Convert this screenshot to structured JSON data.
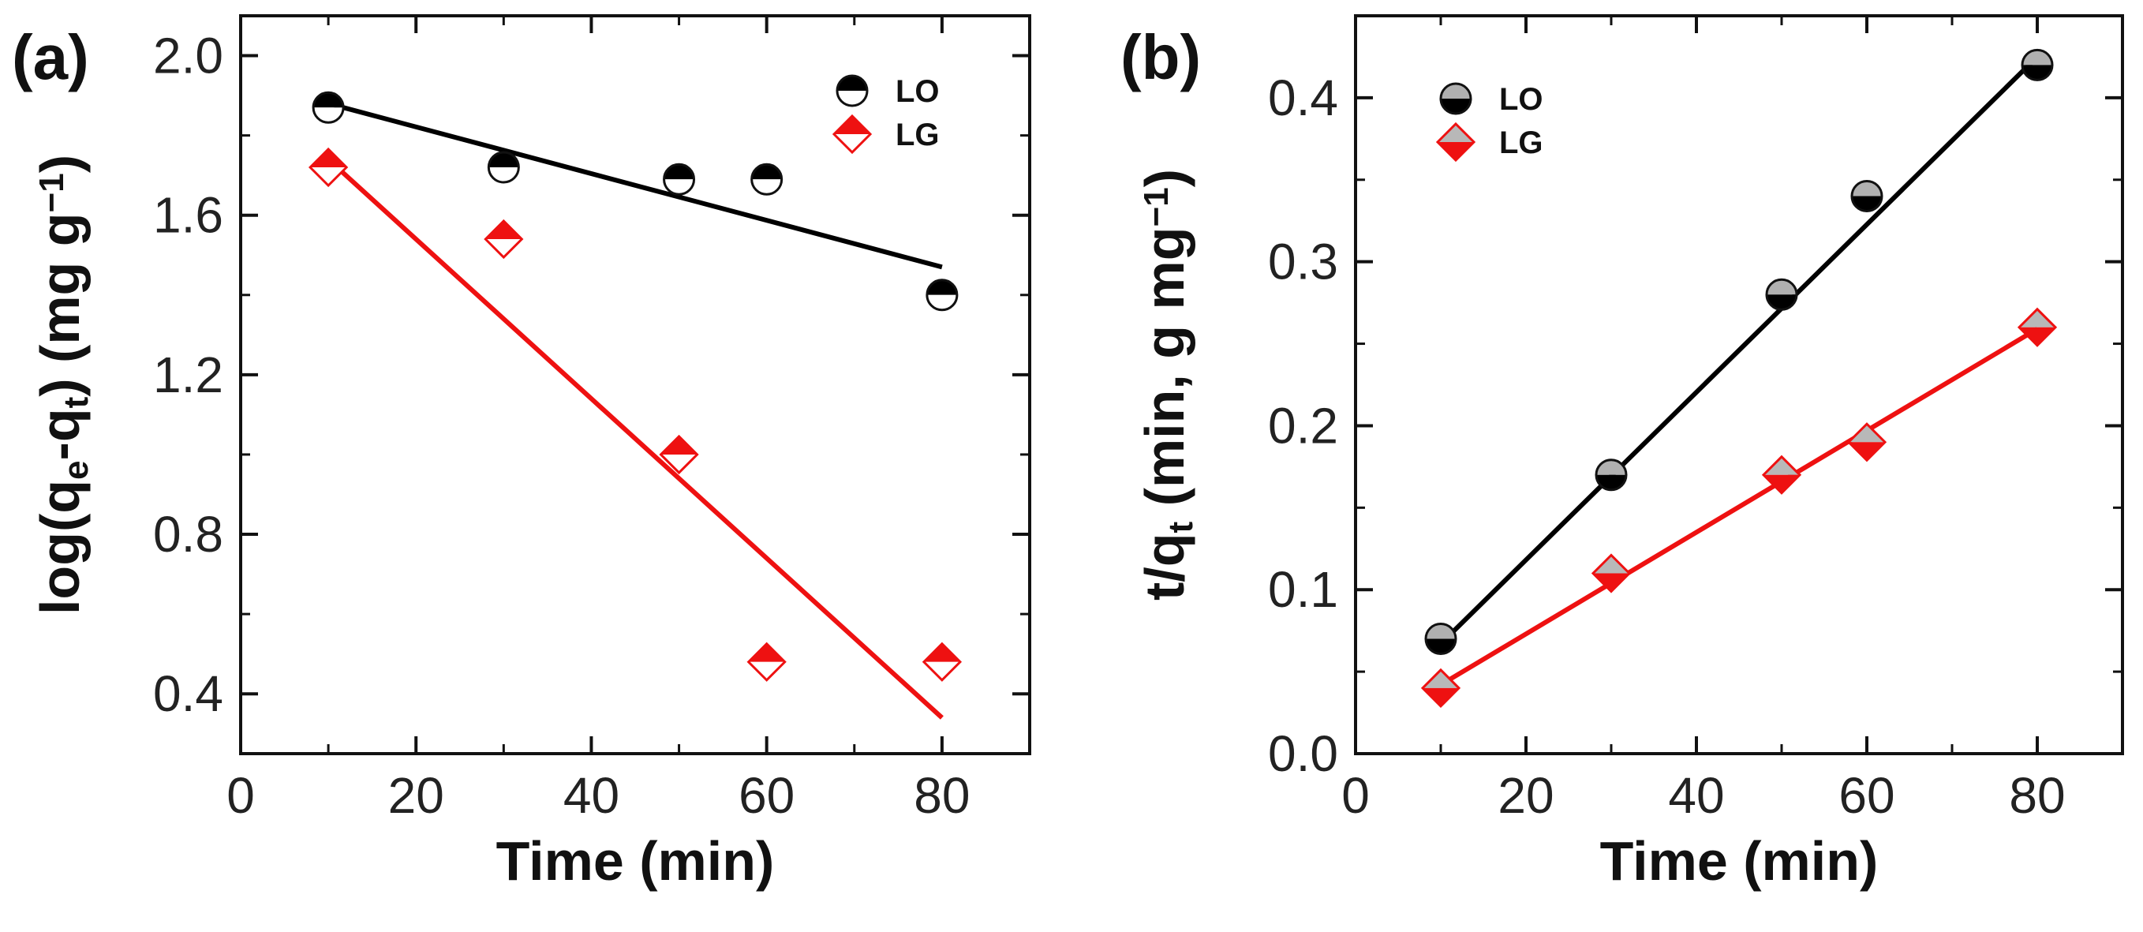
{
  "chart_data": [
    {
      "panel_label": "(a)",
      "type": "scatter",
      "xlabel": "Time (min)",
      "ylabel": {
        "main": "log(q",
        "sub1": "e",
        "mid": "-q",
        "sub2": "t",
        "tail": ") (mg g",
        "sup": "−1",
        "end": ")"
      },
      "xlim": [
        0,
        90
      ],
      "ylim": [
        0.25,
        2.1
      ],
      "xticks": [
        0,
        20,
        40,
        60,
        80
      ],
      "yticks": [
        0.4,
        0.8,
        1.2,
        1.6,
        2.0
      ],
      "xtick_labels": [
        "0",
        "20",
        "40",
        "60",
        "80"
      ],
      "ytick_labels": [
        "0.4",
        "0.8",
        "1.2",
        "1.6",
        "2.0"
      ],
      "legend_position": "top-right",
      "series": [
        {
          "name": "LO",
          "marker": "circle-half-top",
          "color": "#000000",
          "x": [
            10,
            30,
            50,
            60,
            80
          ],
          "y": [
            1.87,
            1.72,
            1.69,
            1.69,
            1.4
          ],
          "fit": {
            "x": [
              10,
              80
            ],
            "y": [
              1.88,
              1.47
            ]
          }
        },
        {
          "name": "LG",
          "marker": "diamond-half-top",
          "color": "#ee1111",
          "x": [
            10,
            30,
            50,
            60,
            80
          ],
          "y": [
            1.72,
            1.54,
            1.0,
            0.48,
            0.48
          ],
          "fit": {
            "x": [
              10,
              80
            ],
            "y": [
              1.74,
              0.34
            ]
          }
        }
      ]
    },
    {
      "panel_label": "(b)",
      "type": "scatter",
      "xlabel": "Time (min)",
      "ylabel": {
        "main": "t/q",
        "sub1": "t",
        "tail": " (min, g mg",
        "sup": "−1",
        "end": ")"
      },
      "xlim": [
        0,
        90
      ],
      "ylim": [
        0.0,
        0.45
      ],
      "xticks": [
        0,
        20,
        40,
        60,
        80
      ],
      "yticks": [
        0.0,
        0.1,
        0.2,
        0.3,
        0.4
      ],
      "xtick_labels": [
        "0",
        "20",
        "40",
        "60",
        "80"
      ],
      "ytick_labels": [
        "0.0",
        "0.1",
        "0.2",
        "0.3",
        "0.4"
      ],
      "legend_position": "top-left",
      "series": [
        {
          "name": "LO",
          "marker": "circle-half-bottom",
          "color": "#000000",
          "x": [
            10,
            30,
            50,
            60,
            80
          ],
          "y": [
            0.07,
            0.17,
            0.28,
            0.34,
            0.42
          ],
          "fit": {
            "x": [
              10,
              80
            ],
            "y": [
              0.067,
              0.425
            ]
          }
        },
        {
          "name": "LG",
          "marker": "diamond-half-bottom",
          "color": "#ee1111",
          "x": [
            10,
            30,
            50,
            60,
            80
          ],
          "y": [
            0.04,
            0.11,
            0.17,
            0.19,
            0.26
          ],
          "fit": {
            "x": [
              10,
              80
            ],
            "y": [
              0.042,
              0.259
            ]
          }
        }
      ]
    }
  ]
}
